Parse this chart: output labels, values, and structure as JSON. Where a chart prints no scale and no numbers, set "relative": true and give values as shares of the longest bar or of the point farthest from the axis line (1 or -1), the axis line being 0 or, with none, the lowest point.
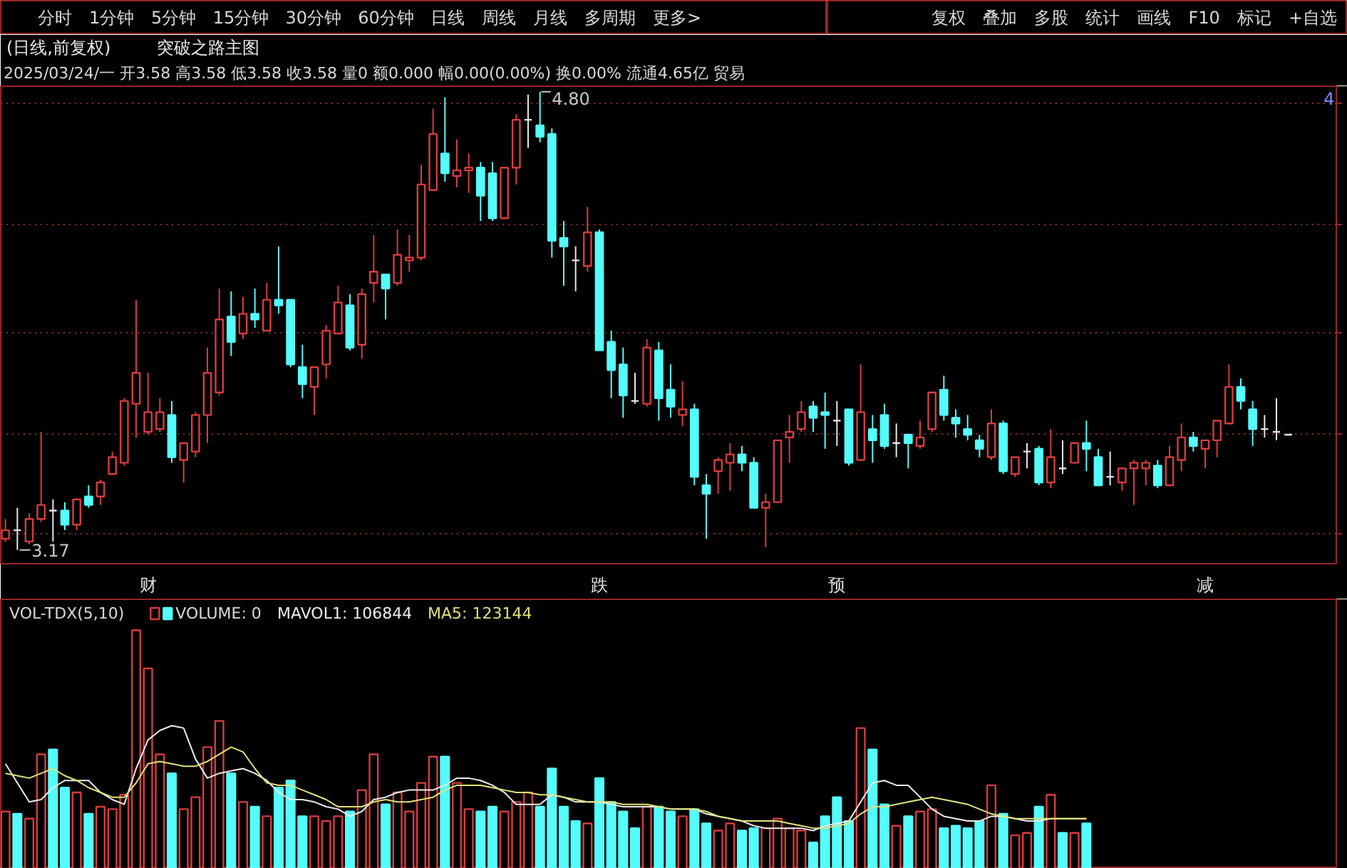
{
  "chart_data": [
    {
      "type": "other",
      "annotations": [
        "分时",
        "1分钟",
        "5分钟",
        "15分钟",
        "30分钟",
        "60分钟",
        "日线",
        "周线",
        "月线",
        "多周期",
        "更多>"
      ]
    },
    {
      "type": "other",
      "annotations": [
        "复权",
        "叠加",
        "多股",
        "统计",
        "画线",
        "F10",
        "标记",
        "+自选"
      ]
    },
    {
      "type": "candlestick",
      "title": "(日线,前复权)",
      "subtitle": "突破之路主图",
      "annotations": [
        "2025/03/24/一 开3.58 高3.58 低3.58 收3.58 量0 额0.000 幅0.00(0.00%) 换0.00% 流通4.65亿 贸易",
        "4.80",
        "3.17",
        "4"
      ],
      "categories": [
        null,
        null,
        null,
        null,
        null,
        null,
        null,
        null,
        null,
        null,
        null,
        null,
        "财",
        null,
        null,
        null,
        null,
        null,
        null,
        null,
        null,
        null,
        null,
        null,
        null,
        null,
        null,
        null,
        null,
        null,
        null,
        null,
        null,
        null,
        null,
        null,
        null,
        null,
        null,
        null,
        null,
        null,
        null,
        null,
        null,
        null,
        null,
        null,
        null,
        null,
        "跌",
        null,
        null,
        null,
        null,
        null,
        null,
        null,
        null,
        null,
        null,
        null,
        null,
        null,
        null,
        null,
        null,
        null,
        null,
        null,
        "预",
        null,
        null,
        null,
        null,
        null,
        null,
        null,
        null,
        null,
        null,
        null,
        null,
        null,
        null,
        null,
        null,
        null,
        null,
        null,
        null,
        null,
        null,
        null,
        null,
        null,
        null,
        null,
        null,
        null,
        null,
        "减",
        null,
        null,
        null,
        null,
        null,
        null,
        null
      ],
      "ohlc": [
        [
          3.21,
          3.28,
          3.2,
          3.24
        ],
        [
          3.24,
          3.32,
          3.17,
          3.24
        ],
        [
          3.2,
          3.3,
          3.19,
          3.28
        ],
        [
          3.28,
          3.59,
          3.27,
          3.33
        ],
        [
          3.31,
          3.35,
          3.2,
          3.31
        ],
        [
          3.31,
          3.34,
          3.24,
          3.26
        ],
        [
          3.26,
          3.35,
          3.24,
          3.35
        ],
        [
          3.36,
          3.4,
          3.32,
          3.33
        ],
        [
          3.36,
          3.42,
          3.33,
          3.41
        ],
        [
          3.44,
          3.52,
          3.44,
          3.5
        ],
        [
          3.48,
          3.71,
          3.47,
          3.7
        ],
        [
          3.69,
          4.06,
          3.57,
          3.8
        ],
        [
          3.59,
          3.8,
          3.58,
          3.66
        ],
        [
          3.6,
          3.71,
          3.59,
          3.66
        ],
        [
          3.65,
          3.7,
          3.48,
          3.5
        ],
        [
          3.49,
          3.55,
          3.41,
          3.55
        ],
        [
          3.52,
          3.66,
          3.5,
          3.65
        ],
        [
          3.65,
          3.89,
          3.55,
          3.8
        ],
        [
          3.73,
          4.1,
          3.72,
          3.99
        ],
        [
          4.0,
          4.09,
          3.86,
          3.91
        ],
        [
          3.94,
          4.07,
          3.92,
          4.01
        ],
        [
          4.01,
          4.1,
          3.96,
          3.99
        ],
        [
          3.95,
          4.12,
          3.95,
          4.06
        ],
        [
          4.06,
          4.25,
          4.01,
          4.04
        ],
        [
          4.06,
          4.06,
          3.82,
          3.83
        ],
        [
          3.82,
          3.9,
          3.71,
          3.76
        ],
        [
          3.75,
          3.82,
          3.65,
          3.82
        ],
        [
          3.83,
          3.97,
          3.78,
          3.95
        ],
        [
          3.94,
          4.11,
          3.94,
          4.05
        ],
        [
          4.04,
          4.08,
          3.88,
          3.89
        ],
        [
          3.9,
          4.1,
          3.85,
          4.08
        ],
        [
          4.12,
          4.29,
          4.05,
          4.16
        ],
        [
          4.15,
          4.15,
          3.99,
          4.1
        ],
        [
          4.12,
          4.31,
          4.11,
          4.22
        ],
        [
          4.2,
          4.29,
          4.16,
          4.21
        ],
        [
          4.21,
          4.54,
          4.2,
          4.47
        ],
        [
          4.45,
          4.74,
          4.45,
          4.65
        ],
        [
          4.58,
          4.78,
          4.48,
          4.51
        ],
        [
          4.5,
          4.63,
          4.46,
          4.52
        ],
        [
          4.52,
          4.58,
          4.44,
          4.53
        ],
        [
          4.53,
          4.55,
          4.34,
          4.43
        ],
        [
          4.51,
          4.55,
          4.34,
          4.35
        ],
        [
          4.35,
          4.53,
          4.35,
          4.53
        ],
        [
          4.53,
          4.72,
          4.47,
          4.7
        ],
        [
          4.7,
          4.79,
          4.6,
          4.7
        ],
        [
          4.68,
          4.8,
          4.62,
          4.64
        ],
        [
          4.65,
          4.67,
          4.21,
          4.27
        ],
        [
          4.28,
          4.34,
          4.11,
          4.25
        ],
        [
          4.2,
          4.25,
          4.09,
          4.2
        ],
        [
          4.18,
          4.39,
          4.16,
          4.3
        ],
        [
          4.3,
          4.31,
          3.88,
          3.88
        ],
        [
          3.91,
          3.95,
          3.71,
          3.81
        ],
        [
          3.83,
          3.89,
          3.64,
          3.72
        ],
        [
          3.7,
          3.8,
          3.69,
          3.7
        ],
        [
          3.69,
          3.92,
          3.68,
          3.89
        ],
        [
          3.88,
          3.91,
          3.63,
          3.71
        ],
        [
          3.74,
          3.83,
          3.64,
          3.68
        ],
        [
          3.65,
          3.77,
          3.61,
          3.67
        ],
        [
          3.67,
          3.69,
          3.4,
          3.43
        ],
        [
          3.4,
          3.44,
          3.21,
          3.37
        ],
        [
          3.45,
          3.5,
          3.37,
          3.49
        ],
        [
          3.48,
          3.55,
          3.38,
          3.51
        ],
        [
          3.51,
          3.54,
          3.45,
          3.48
        ],
        [
          3.48,
          3.5,
          3.32,
          3.32
        ],
        [
          3.32,
          3.37,
          3.18,
          3.34
        ],
        [
          3.34,
          3.56,
          3.34,
          3.56
        ],
        [
          3.57,
          3.65,
          3.48,
          3.59
        ],
        [
          3.6,
          3.7,
          3.59,
          3.66
        ],
        [
          3.68,
          3.7,
          3.59,
          3.64
        ],
        [
          3.66,
          3.73,
          3.53,
          3.65
        ],
        [
          3.63,
          3.7,
          3.54,
          3.63
        ],
        [
          3.67,
          3.67,
          3.47,
          3.48
        ],
        [
          3.49,
          3.83,
          3.49,
          3.66
        ],
        [
          3.6,
          3.65,
          3.48,
          3.56
        ],
        [
          3.65,
          3.69,
          3.53,
          3.54
        ],
        [
          3.55,
          3.62,
          3.5,
          3.55
        ],
        [
          3.58,
          3.58,
          3.46,
          3.55
        ],
        [
          3.54,
          3.63,
          3.53,
          3.57
        ],
        [
          3.6,
          3.73,
          3.59,
          3.73
        ],
        [
          3.74,
          3.79,
          3.63,
          3.65
        ],
        [
          3.64,
          3.67,
          3.57,
          3.62
        ],
        [
          3.6,
          3.65,
          3.56,
          3.58
        ],
        [
          3.56,
          3.58,
          3.5,
          3.53
        ],
        [
          3.5,
          3.67,
          3.49,
          3.62
        ],
        [
          3.62,
          3.63,
          3.44,
          3.45
        ],
        [
          3.44,
          3.5,
          3.43,
          3.5
        ],
        [
          3.52,
          3.55,
          3.46,
          3.52
        ],
        [
          3.53,
          3.54,
          3.4,
          3.41
        ],
        [
          3.41,
          3.6,
          3.39,
          3.5
        ],
        [
          3.46,
          3.56,
          3.44,
          3.46
        ],
        [
          3.48,
          3.55,
          3.48,
          3.55
        ],
        [
          3.55,
          3.63,
          3.45,
          3.53
        ],
        [
          3.5,
          3.53,
          3.4,
          3.4
        ],
        [
          3.43,
          3.52,
          3.4,
          3.43
        ],
        [
          3.41,
          3.46,
          3.38,
          3.46
        ],
        [
          3.46,
          3.49,
          3.33,
          3.48
        ],
        [
          3.46,
          3.49,
          3.4,
          3.48
        ],
        [
          3.47,
          3.49,
          3.39,
          3.4
        ],
        [
          3.4,
          3.54,
          3.4,
          3.5
        ],
        [
          3.49,
          3.62,
          3.45,
          3.57
        ],
        [
          3.57,
          3.59,
          3.52,
          3.54
        ],
        [
          3.53,
          3.56,
          3.46,
          3.56
        ],
        [
          3.56,
          3.63,
          3.5,
          3.63
        ],
        [
          3.62,
          3.83,
          3.62,
          3.75
        ],
        [
          3.75,
          3.78,
          3.67,
          3.7
        ],
        [
          3.67,
          3.7,
          3.54,
          3.6
        ],
        [
          3.6,
          3.65,
          3.57,
          3.6
        ],
        [
          3.59,
          3.71,
          3.56,
          3.59
        ],
        [
          3.58,
          3.58,
          3.58,
          3.58
        ]
      ],
      "colors": [
        "#d83c3c",
        "#e6e6e6",
        "#d83c3c",
        "#d83c3c",
        "#e6e6e6",
        "#54fcfc",
        "#d83c3c",
        "#54fcfc",
        "#d83c3c",
        "#d83c3c",
        "#d83c3c",
        "#d83c3c",
        "#d83c3c",
        "#d83c3c",
        "#54fcfc",
        "#d83c3c",
        "#d83c3c",
        "#d83c3c",
        "#d83c3c",
        "#54fcfc",
        "#d83c3c",
        "#54fcfc",
        "#d83c3c",
        "#54fcfc",
        "#54fcfc",
        "#54fcfc",
        "#d83c3c",
        "#d83c3c",
        "#d83c3c",
        "#54fcfc",
        "#d83c3c",
        "#d83c3c",
        "#54fcfc",
        "#d83c3c",
        "#d83c3c",
        "#d83c3c",
        "#d83c3c",
        "#54fcfc",
        "#d83c3c",
        "#d83c3c",
        "#54fcfc",
        "#54fcfc",
        "#d83c3c",
        "#d83c3c",
        "#e6e6e6",
        "#54fcfc",
        "#54fcfc",
        "#54fcfc",
        "#e6e6e6",
        "#d83c3c",
        "#54fcfc",
        "#54fcfc",
        "#54fcfc",
        "#e6e6e6",
        "#d83c3c",
        "#54fcfc",
        "#54fcfc",
        "#d83c3c",
        "#54fcfc",
        "#54fcfc",
        "#d83c3c",
        "#d83c3c",
        "#54fcfc",
        "#54fcfc",
        "#d83c3c",
        "#d83c3c",
        "#d83c3c",
        "#d83c3c",
        "#54fcfc",
        "#54fcfc",
        "#e6e6e6",
        "#54fcfc",
        "#d83c3c",
        "#54fcfc",
        "#54fcfc",
        "#e6e6e6",
        "#54fcfc",
        "#d83c3c",
        "#d83c3c",
        "#54fcfc",
        "#54fcfc",
        "#54fcfc",
        "#54fcfc",
        "#d83c3c",
        "#54fcfc",
        "#d83c3c",
        "#e6e6e6",
        "#54fcfc",
        "#d83c3c",
        "#e6e6e6",
        "#d83c3c",
        "#54fcfc",
        "#54fcfc",
        "#e6e6e6",
        "#d83c3c",
        "#d83c3c",
        "#d83c3c",
        "#54fcfc",
        "#d83c3c",
        "#d83c3c",
        "#54fcfc",
        "#d83c3c",
        "#d83c3c",
        "#d83c3c",
        "#54fcfc",
        "#54fcfc",
        "#e6e6e6",
        "#e6e6e6",
        "#e6e6e6"
      ],
      "yticks": [
        {
          "value": 3.23,
          "label": null
        },
        {
          "value": 3.58,
          "label": null
        },
        {
          "value": 3.94,
          "label": null
        },
        {
          "value": 4.33,
          "label": null
        },
        {
          "value": 4.76,
          "label": null
        }
      ],
      "grid": "y",
      "tick_labels": "x"
    },
    {
      "type": "bar",
      "title": "VOL-TDX(5,10)",
      "relative": true,
      "legend": "top left",
      "categories": [
        null,
        null,
        null,
        null,
        null,
        null,
        null,
        null,
        null,
        null,
        null,
        null,
        null,
        null,
        null,
        null,
        null,
        null,
        null,
        null,
        null,
        null,
        null,
        null,
        null,
        null,
        null,
        null,
        null,
        null,
        null,
        null,
        null,
        null,
        null,
        null,
        null,
        null,
        null,
        null,
        null,
        null,
        null,
        null,
        null,
        null,
        null,
        null,
        null,
        null,
        null,
        null,
        null,
        null,
        null,
        null,
        null,
        null,
        null,
        null,
        null,
        null,
        null,
        null,
        null,
        null,
        null,
        null,
        null,
        null,
        null,
        null,
        null,
        null,
        null,
        null,
        null,
        null,
        null,
        null,
        null,
        null,
        null,
        null,
        null,
        null,
        null,
        null,
        null,
        null,
        null,
        null,
        null,
        null,
        null,
        null,
        null,
        null,
        null,
        null,
        null,
        null,
        null,
        null,
        null,
        null,
        null,
        null,
        null
      ],
      "series": [
        {
          "name": "VOLUME: 0",
          "colors": [
            "#d83c3c",
            "#54fcfc",
            "#d83c3c",
            "#d83c3c",
            "#54fcfc",
            "#54fcfc",
            "#d83c3c",
            "#54fcfc",
            "#d83c3c",
            "#d83c3c",
            "#d83c3c",
            "#d83c3c",
            "#d83c3c",
            "#d83c3c",
            "#54fcfc",
            "#d83c3c",
            "#d83c3c",
            "#d83c3c",
            "#d83c3c",
            "#54fcfc",
            "#d83c3c",
            "#54fcfc",
            "#d83c3c",
            "#54fcfc",
            "#54fcfc",
            "#54fcfc",
            "#d83c3c",
            "#d83c3c",
            "#d83c3c",
            "#54fcfc",
            "#d83c3c",
            "#d83c3c",
            "#54fcfc",
            "#d83c3c",
            "#d83c3c",
            "#d83c3c",
            "#d83c3c",
            "#54fcfc",
            "#d83c3c",
            "#d83c3c",
            "#54fcfc",
            "#54fcfc",
            "#d83c3c",
            "#d83c3c",
            "#d83c3c",
            "#54fcfc",
            "#54fcfc",
            "#54fcfc",
            "#54fcfc",
            "#d83c3c",
            "#54fcfc",
            "#54fcfc",
            "#54fcfc",
            "#54fcfc",
            "#d83c3c",
            "#54fcfc",
            "#54fcfc",
            "#d83c3c",
            "#54fcfc",
            "#54fcfc",
            "#d83c3c",
            "#d83c3c",
            "#54fcfc",
            "#54fcfc",
            "#d83c3c",
            "#d83c3c",
            "#d83c3c",
            "#d83c3c",
            "#54fcfc",
            "#54fcfc",
            "#54fcfc",
            "#54fcfc",
            "#d83c3c",
            "#54fcfc",
            "#54fcfc",
            "#d83c3c",
            "#54fcfc",
            "#d83c3c",
            "#d83c3c",
            "#54fcfc",
            "#54fcfc",
            "#54fcfc",
            "#54fcfc",
            "#d83c3c",
            "#54fcfc",
            "#d83c3c",
            "#d83c3c",
            "#54fcfc",
            "#d83c3c",
            "#54fcfc",
            "#d83c3c",
            "#54fcfc",
            null,
            null,
            null,
            null,
            null,
            null,
            null,
            null,
            null,
            null,
            null,
            null,
            null,
            null,
            null,
            null,
            null
          ],
          "values": [
            0.24,
            0.23,
            0.21,
            0.48,
            0.5,
            0.34,
            0.32,
            0.23,
            0.26,
            0.25,
            0.31,
            1,
            0.84,
            0.48,
            0.4,
            0.25,
            0.3,
            0.51,
            0.62,
            0.4,
            0.28,
            0.26,
            0.22,
            0.34,
            0.37,
            0.22,
            0.22,
            0.2,
            0.22,
            0.24,
            0.33,
            0.48,
            0.27,
            0.32,
            0.24,
            0.36,
            0.47,
            0.47,
            0.36,
            0.25,
            0.24,
            0.26,
            0.24,
            0.28,
            0.32,
            0.26,
            0.42,
            0.26,
            0.2,
            0.19,
            0.38,
            0.28,
            0.24,
            0.17,
            0.26,
            0.26,
            0.24,
            0.22,
            0.25,
            0.19,
            0.16,
            0.19,
            0.16,
            0.17,
            0.17,
            0.21,
            0.17,
            0.16,
            0.11,
            0.22,
            0.3,
            0.2,
            0.59,
            0.5,
            0.27,
            0.18,
            0.22,
            0.24,
            0.25,
            0.17,
            0.18,
            0.17,
            0.2,
            0.35,
            0.23,
            0.14,
            0.15,
            0.26,
            0.31,
            0.15,
            0.15,
            0.19,
            null,
            null,
            null,
            null,
            null,
            null,
            null,
            null,
            null,
            null,
            null,
            null,
            null,
            null,
            null,
            null,
            null
          ]
        },
        {
          "type": "line",
          "name": "MAVOL1: 106844",
          "color": "#ececec",
          "values": [
            0.44,
            0.36,
            0.28,
            0.29,
            0.34,
            0.37,
            0.37,
            0.37,
            0.32,
            0.29,
            0.27,
            0.42,
            0.54,
            0.58,
            0.6,
            0.59,
            0.46,
            0.38,
            0.4,
            0.41,
            0.42,
            0.4,
            0.37,
            0.32,
            0.29,
            0.29,
            0.28,
            0.26,
            0.25,
            0.22,
            0.24,
            0.29,
            0.3,
            0.32,
            0.33,
            0.33,
            0.33,
            0.35,
            0.38,
            0.38,
            0.37,
            0.35,
            0.32,
            0.27,
            0.27,
            0.27,
            0.31,
            0.3,
            0.28,
            0.28,
            0.28,
            0.27,
            0.26,
            0.26,
            0.26,
            0.26,
            0.25,
            0.25,
            0.25,
            0.23,
            0.22,
            0.21,
            0.2,
            0.18,
            0.17,
            0.17,
            0.17,
            0.17,
            0.16,
            0.18,
            0.19,
            0.2,
            0.28,
            0.36,
            0.37,
            0.35,
            0.35,
            0.3,
            0.25,
            0.22,
            0.21,
            0.2,
            0.2,
            0.22,
            0.22,
            0.21,
            0.2,
            0.2,
            0.21,
            0.21,
            0.21,
            0.21,
            null,
            null,
            null,
            null,
            null,
            null,
            null,
            null,
            null,
            null,
            null,
            null,
            null,
            null,
            null,
            null,
            null
          ]
        },
        {
          "type": "line",
          "name": "MA5: 123144",
          "color": "#e2e27a",
          "values": [
            0.4,
            0.39,
            0.38,
            0.4,
            0.42,
            0.39,
            0.37,
            0.34,
            0.32,
            0.3,
            0.3,
            0.36,
            0.44,
            0.45,
            0.44,
            0.43,
            0.43,
            0.45,
            0.48,
            0.51,
            0.49,
            0.42,
            0.36,
            0.35,
            0.35,
            0.33,
            0.31,
            0.29,
            0.26,
            0.26,
            0.26,
            0.28,
            0.29,
            0.28,
            0.28,
            0.29,
            0.3,
            0.33,
            0.35,
            0.35,
            0.35,
            0.34,
            0.33,
            0.32,
            0.32,
            0.31,
            0.31,
            0.3,
            0.29,
            0.28,
            0.28,
            0.28,
            0.27,
            0.27,
            0.27,
            0.26,
            0.25,
            0.25,
            0.25,
            0.24,
            0.22,
            0.21,
            0.2,
            0.2,
            0.2,
            0.2,
            0.19,
            0.18,
            0.17,
            0.17,
            0.18,
            0.19,
            0.23,
            0.26,
            0.26,
            0.27,
            0.28,
            0.29,
            0.3,
            0.29,
            0.28,
            0.27,
            0.25,
            0.23,
            0.22,
            0.21,
            0.21,
            0.21,
            0.21,
            0.21,
            0.21,
            0.21,
            null,
            null,
            null,
            null,
            null,
            null,
            null,
            null,
            null,
            null,
            null,
            null,
            null,
            null,
            null,
            null,
            null
          ]
        }
      ]
    }
  ]
}
